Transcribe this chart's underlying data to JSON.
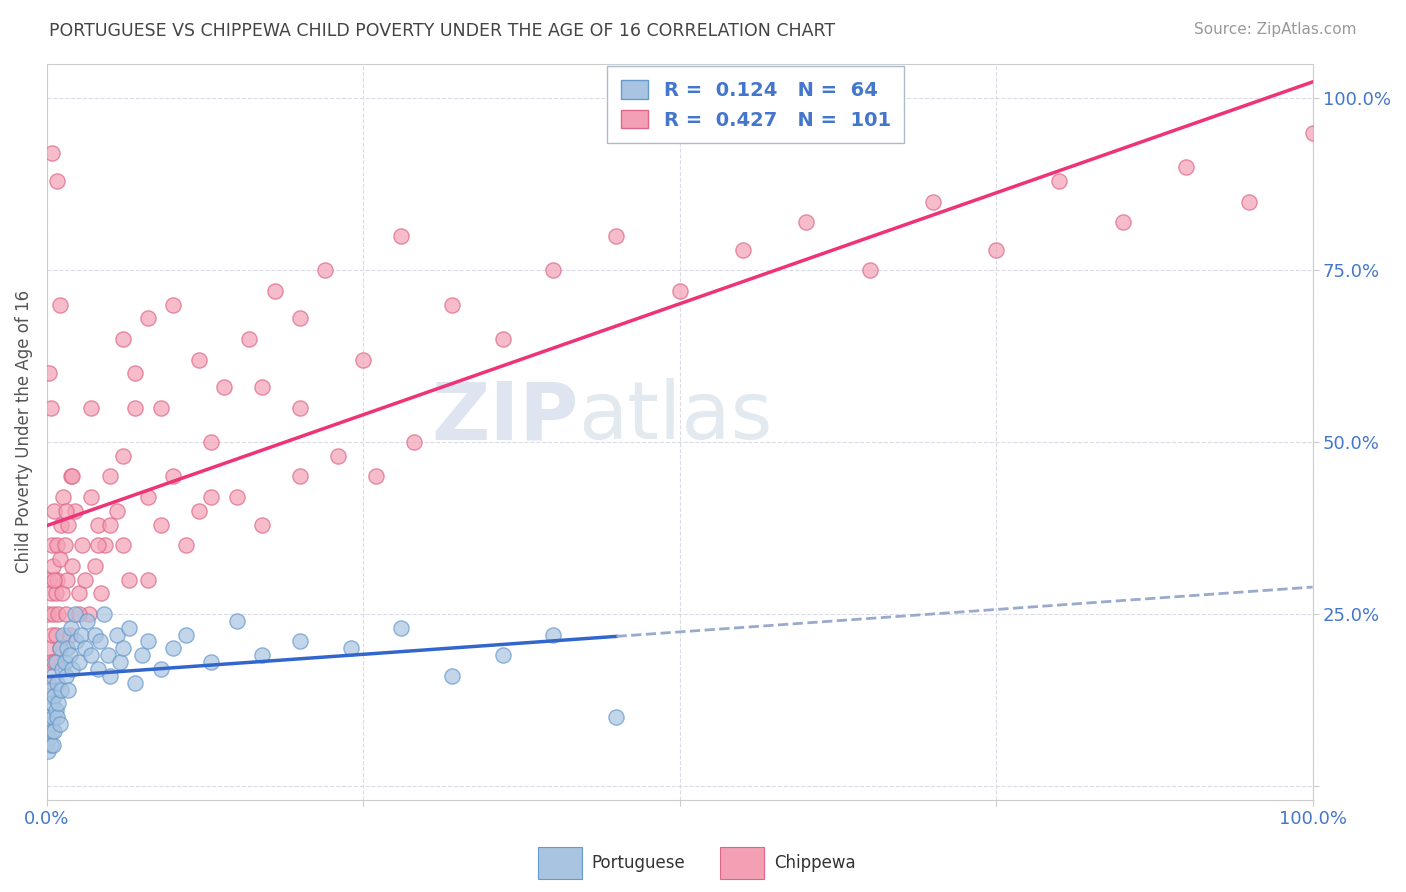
{
  "title": "PORTUGUESE VS CHIPPEWA CHILD POVERTY UNDER THE AGE OF 16 CORRELATION CHART",
  "source": "Source: ZipAtlas.com",
  "ylabel": "Child Poverty Under the Age of 16",
  "portuguese_R": 0.124,
  "portuguese_N": 64,
  "chippewa_R": 0.427,
  "chippewa_N": 101,
  "portuguese_color": "#a8c4e0",
  "portuguese_edge_color": "#6699cc",
  "chippewa_color": "#f4a0b4",
  "chippewa_edge_color": "#dd6688",
  "portuguese_line_color": "#3366cc",
  "chippewa_line_color": "#ee3377",
  "dashed_line_color": "#99aacc",
  "background_color": "#ffffff",
  "title_color": "#555555",
  "source_color": "#999999",
  "axis_label_color": "#4477cc",
  "watermark_color": "#d8dff0",
  "portuguese_scatter_x": [
    0.001,
    0.001,
    0.002,
    0.002,
    0.003,
    0.003,
    0.003,
    0.004,
    0.004,
    0.005,
    0.005,
    0.005,
    0.006,
    0.006,
    0.007,
    0.007,
    0.008,
    0.008,
    0.009,
    0.01,
    0.01,
    0.011,
    0.012,
    0.013,
    0.014,
    0.015,
    0.016,
    0.017,
    0.018,
    0.019,
    0.02,
    0.022,
    0.023,
    0.025,
    0.027,
    0.03,
    0.032,
    0.035,
    0.038,
    0.04,
    0.042,
    0.045,
    0.048,
    0.05,
    0.055,
    0.058,
    0.06,
    0.065,
    0.07,
    0.075,
    0.08,
    0.09,
    0.1,
    0.11,
    0.13,
    0.15,
    0.17,
    0.2,
    0.24,
    0.28,
    0.32,
    0.36,
    0.4,
    0.45
  ],
  "portuguese_scatter_y": [
    0.05,
    0.1,
    0.07,
    0.13,
    0.06,
    0.09,
    0.14,
    0.08,
    0.12,
    0.06,
    0.1,
    0.16,
    0.08,
    0.13,
    0.11,
    0.18,
    0.1,
    0.15,
    0.12,
    0.09,
    0.2,
    0.14,
    0.17,
    0.22,
    0.18,
    0.16,
    0.2,
    0.14,
    0.19,
    0.23,
    0.17,
    0.25,
    0.21,
    0.18,
    0.22,
    0.2,
    0.24,
    0.19,
    0.22,
    0.17,
    0.21,
    0.25,
    0.19,
    0.16,
    0.22,
    0.18,
    0.2,
    0.23,
    0.15,
    0.19,
    0.21,
    0.17,
    0.2,
    0.22,
    0.18,
    0.24,
    0.19,
    0.21,
    0.2,
    0.23,
    0.16,
    0.19,
    0.22,
    0.1
  ],
  "chippewa_scatter_x": [
    0.001,
    0.001,
    0.002,
    0.002,
    0.003,
    0.003,
    0.004,
    0.004,
    0.005,
    0.005,
    0.006,
    0.006,
    0.007,
    0.007,
    0.008,
    0.008,
    0.009,
    0.01,
    0.01,
    0.011,
    0.012,
    0.013,
    0.014,
    0.015,
    0.016,
    0.017,
    0.018,
    0.019,
    0.02,
    0.022,
    0.025,
    0.028,
    0.03,
    0.033,
    0.035,
    0.038,
    0.04,
    0.043,
    0.046,
    0.05,
    0.055,
    0.06,
    0.065,
    0.07,
    0.08,
    0.09,
    0.1,
    0.11,
    0.12,
    0.13,
    0.15,
    0.17,
    0.2,
    0.23,
    0.26,
    0.29,
    0.06,
    0.07,
    0.08,
    0.09,
    0.1,
    0.12,
    0.14,
    0.16,
    0.18,
    0.2,
    0.22,
    0.25,
    0.28,
    0.32,
    0.36,
    0.4,
    0.45,
    0.5,
    0.55,
    0.6,
    0.65,
    0.7,
    0.75,
    0.8,
    0.85,
    0.9,
    0.95,
    1.0,
    0.002,
    0.003,
    0.004,
    0.006,
    0.008,
    0.01,
    0.015,
    0.02,
    0.025,
    0.035,
    0.04,
    0.05,
    0.06,
    0.08,
    0.13,
    0.17,
    0.2
  ],
  "chippewa_scatter_y": [
    0.15,
    0.25,
    0.2,
    0.3,
    0.18,
    0.28,
    0.22,
    0.35,
    0.25,
    0.32,
    0.18,
    0.4,
    0.28,
    0.22,
    0.35,
    0.3,
    0.25,
    0.2,
    0.33,
    0.38,
    0.28,
    0.42,
    0.35,
    0.25,
    0.3,
    0.38,
    0.22,
    0.45,
    0.32,
    0.4,
    0.28,
    0.35,
    0.3,
    0.25,
    0.42,
    0.32,
    0.38,
    0.28,
    0.35,
    0.45,
    0.4,
    0.35,
    0.3,
    0.55,
    0.42,
    0.38,
    0.45,
    0.35,
    0.4,
    0.5,
    0.42,
    0.38,
    0.55,
    0.48,
    0.45,
    0.5,
    0.65,
    0.6,
    0.68,
    0.55,
    0.7,
    0.62,
    0.58,
    0.65,
    0.72,
    0.68,
    0.75,
    0.62,
    0.8,
    0.7,
    0.65,
    0.75,
    0.8,
    0.72,
    0.78,
    0.82,
    0.75,
    0.85,
    0.78,
    0.88,
    0.82,
    0.9,
    0.85,
    0.95,
    0.6,
    0.55,
    0.92,
    0.3,
    0.88,
    0.7,
    0.4,
    0.45,
    0.25,
    0.55,
    0.35,
    0.38,
    0.48,
    0.3,
    0.42,
    0.58,
    0.45
  ]
}
